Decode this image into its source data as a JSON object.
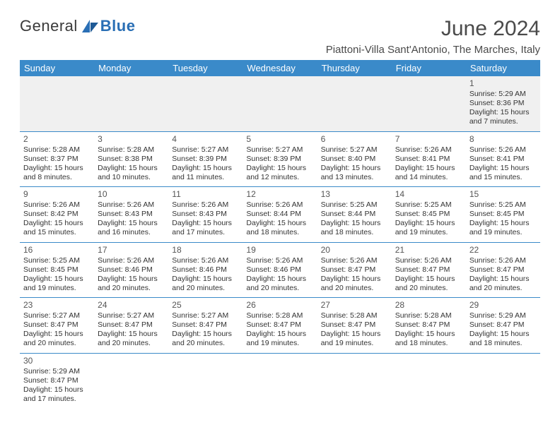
{
  "logo": {
    "text1": "General",
    "text2": "Blue"
  },
  "title": "June 2024",
  "location": "Piattoni-Villa Sant'Antonio, The Marches, Italy",
  "colors": {
    "header_bg": "#3a8ac9",
    "header_fg": "#ffffff",
    "rule": "#3a8ac9",
    "blank_bg": "#f0f0f0",
    "text": "#333333",
    "title": "#4a4a4a",
    "logo_blue": "#2a6fb5"
  },
  "days_of_week": [
    "Sunday",
    "Monday",
    "Tuesday",
    "Wednesday",
    "Thursday",
    "Friday",
    "Saturday"
  ],
  "weeks": [
    [
      null,
      null,
      null,
      null,
      null,
      null,
      {
        "n": "1",
        "sr": "Sunrise: 5:29 AM",
        "ss": "Sunset: 8:36 PM",
        "d1": "Daylight: 15 hours",
        "d2": "and 7 minutes."
      }
    ],
    [
      {
        "n": "2",
        "sr": "Sunrise: 5:28 AM",
        "ss": "Sunset: 8:37 PM",
        "d1": "Daylight: 15 hours",
        "d2": "and 8 minutes."
      },
      {
        "n": "3",
        "sr": "Sunrise: 5:28 AM",
        "ss": "Sunset: 8:38 PM",
        "d1": "Daylight: 15 hours",
        "d2": "and 10 minutes."
      },
      {
        "n": "4",
        "sr": "Sunrise: 5:27 AM",
        "ss": "Sunset: 8:39 PM",
        "d1": "Daylight: 15 hours",
        "d2": "and 11 minutes."
      },
      {
        "n": "5",
        "sr": "Sunrise: 5:27 AM",
        "ss": "Sunset: 8:39 PM",
        "d1": "Daylight: 15 hours",
        "d2": "and 12 minutes."
      },
      {
        "n": "6",
        "sr": "Sunrise: 5:27 AM",
        "ss": "Sunset: 8:40 PM",
        "d1": "Daylight: 15 hours",
        "d2": "and 13 minutes."
      },
      {
        "n": "7",
        "sr": "Sunrise: 5:26 AM",
        "ss": "Sunset: 8:41 PM",
        "d1": "Daylight: 15 hours",
        "d2": "and 14 minutes."
      },
      {
        "n": "8",
        "sr": "Sunrise: 5:26 AM",
        "ss": "Sunset: 8:41 PM",
        "d1": "Daylight: 15 hours",
        "d2": "and 15 minutes."
      }
    ],
    [
      {
        "n": "9",
        "sr": "Sunrise: 5:26 AM",
        "ss": "Sunset: 8:42 PM",
        "d1": "Daylight: 15 hours",
        "d2": "and 15 minutes."
      },
      {
        "n": "10",
        "sr": "Sunrise: 5:26 AM",
        "ss": "Sunset: 8:43 PM",
        "d1": "Daylight: 15 hours",
        "d2": "and 16 minutes."
      },
      {
        "n": "11",
        "sr": "Sunrise: 5:26 AM",
        "ss": "Sunset: 8:43 PM",
        "d1": "Daylight: 15 hours",
        "d2": "and 17 minutes."
      },
      {
        "n": "12",
        "sr": "Sunrise: 5:26 AM",
        "ss": "Sunset: 8:44 PM",
        "d1": "Daylight: 15 hours",
        "d2": "and 18 minutes."
      },
      {
        "n": "13",
        "sr": "Sunrise: 5:25 AM",
        "ss": "Sunset: 8:44 PM",
        "d1": "Daylight: 15 hours",
        "d2": "and 18 minutes."
      },
      {
        "n": "14",
        "sr": "Sunrise: 5:25 AM",
        "ss": "Sunset: 8:45 PM",
        "d1": "Daylight: 15 hours",
        "d2": "and 19 minutes."
      },
      {
        "n": "15",
        "sr": "Sunrise: 5:25 AM",
        "ss": "Sunset: 8:45 PM",
        "d1": "Daylight: 15 hours",
        "d2": "and 19 minutes."
      }
    ],
    [
      {
        "n": "16",
        "sr": "Sunrise: 5:25 AM",
        "ss": "Sunset: 8:45 PM",
        "d1": "Daylight: 15 hours",
        "d2": "and 19 minutes."
      },
      {
        "n": "17",
        "sr": "Sunrise: 5:26 AM",
        "ss": "Sunset: 8:46 PM",
        "d1": "Daylight: 15 hours",
        "d2": "and 20 minutes."
      },
      {
        "n": "18",
        "sr": "Sunrise: 5:26 AM",
        "ss": "Sunset: 8:46 PM",
        "d1": "Daylight: 15 hours",
        "d2": "and 20 minutes."
      },
      {
        "n": "19",
        "sr": "Sunrise: 5:26 AM",
        "ss": "Sunset: 8:46 PM",
        "d1": "Daylight: 15 hours",
        "d2": "and 20 minutes."
      },
      {
        "n": "20",
        "sr": "Sunrise: 5:26 AM",
        "ss": "Sunset: 8:47 PM",
        "d1": "Daylight: 15 hours",
        "d2": "and 20 minutes."
      },
      {
        "n": "21",
        "sr": "Sunrise: 5:26 AM",
        "ss": "Sunset: 8:47 PM",
        "d1": "Daylight: 15 hours",
        "d2": "and 20 minutes."
      },
      {
        "n": "22",
        "sr": "Sunrise: 5:26 AM",
        "ss": "Sunset: 8:47 PM",
        "d1": "Daylight: 15 hours",
        "d2": "and 20 minutes."
      }
    ],
    [
      {
        "n": "23",
        "sr": "Sunrise: 5:27 AM",
        "ss": "Sunset: 8:47 PM",
        "d1": "Daylight: 15 hours",
        "d2": "and 20 minutes."
      },
      {
        "n": "24",
        "sr": "Sunrise: 5:27 AM",
        "ss": "Sunset: 8:47 PM",
        "d1": "Daylight: 15 hours",
        "d2": "and 20 minutes."
      },
      {
        "n": "25",
        "sr": "Sunrise: 5:27 AM",
        "ss": "Sunset: 8:47 PM",
        "d1": "Daylight: 15 hours",
        "d2": "and 20 minutes."
      },
      {
        "n": "26",
        "sr": "Sunrise: 5:28 AM",
        "ss": "Sunset: 8:47 PM",
        "d1": "Daylight: 15 hours",
        "d2": "and 19 minutes."
      },
      {
        "n": "27",
        "sr": "Sunrise: 5:28 AM",
        "ss": "Sunset: 8:47 PM",
        "d1": "Daylight: 15 hours",
        "d2": "and 19 minutes."
      },
      {
        "n": "28",
        "sr": "Sunrise: 5:28 AM",
        "ss": "Sunset: 8:47 PM",
        "d1": "Daylight: 15 hours",
        "d2": "and 18 minutes."
      },
      {
        "n": "29",
        "sr": "Sunrise: 5:29 AM",
        "ss": "Sunset: 8:47 PM",
        "d1": "Daylight: 15 hours",
        "d2": "and 18 minutes."
      }
    ],
    [
      {
        "n": "30",
        "sr": "Sunrise: 5:29 AM",
        "ss": "Sunset: 8:47 PM",
        "d1": "Daylight: 15 hours",
        "d2": "and 17 minutes."
      },
      null,
      null,
      null,
      null,
      null,
      null
    ]
  ]
}
